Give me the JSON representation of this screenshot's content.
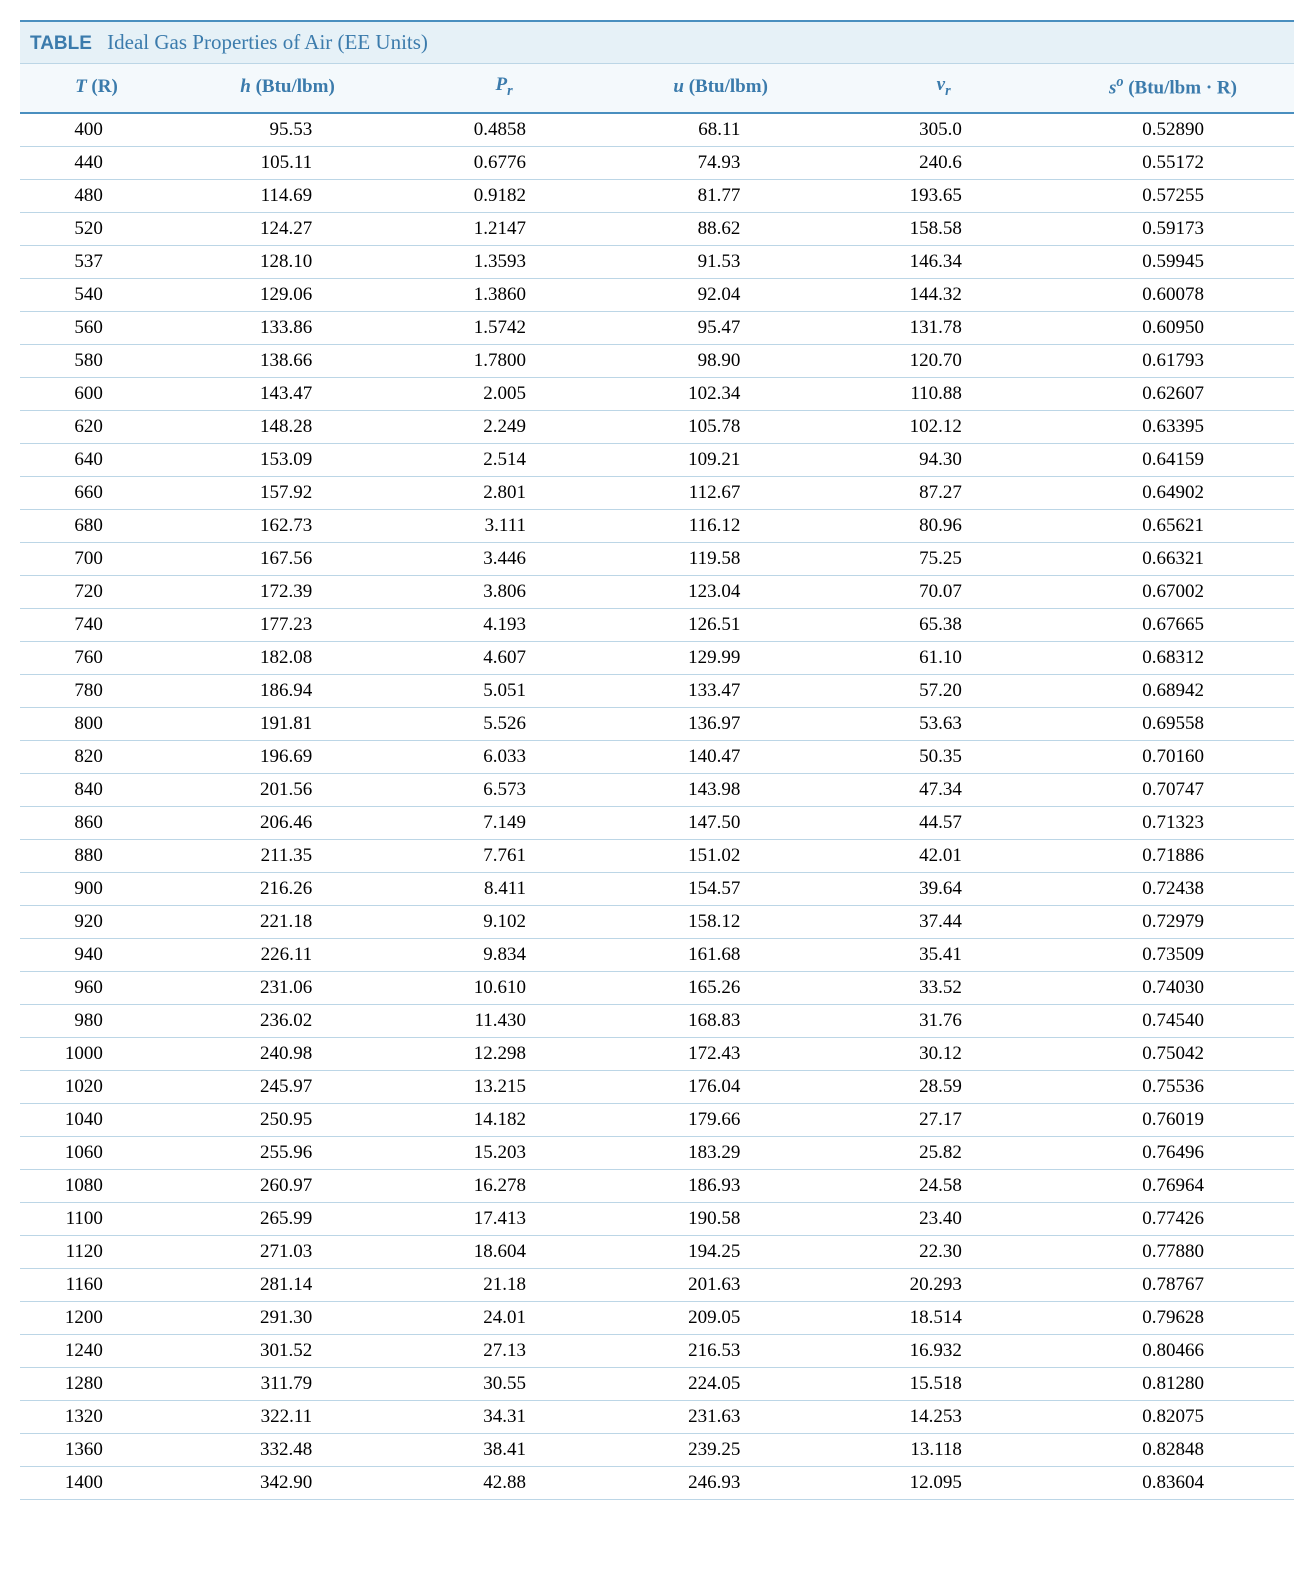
{
  "table": {
    "label": "TABLE",
    "title": "Ideal Gas Properties of Air (EE Units)",
    "colors": {
      "border_top": "#4a8fbf",
      "header_bg": "#f4f9fc",
      "title_bg": "#e6f1f7",
      "header_text": "#3b7bac",
      "row_border": "#bcd6e6",
      "body_text": "#000000",
      "page_bg": "#ffffff"
    },
    "columns": [
      {
        "key": "T",
        "header_html": "<span>T</span> <span class=\"roman\">(R)</span>"
      },
      {
        "key": "h",
        "header_html": "<span>h</span> <span class=\"roman\">(Btu/lbm)</span>"
      },
      {
        "key": "Pr",
        "header_html": "<span>P</span><sub>r</sub>"
      },
      {
        "key": "u",
        "header_html": "<span>u</span> <span class=\"roman\">(Btu/lbm)</span>"
      },
      {
        "key": "vr",
        "header_html": "<span>v</span><sub>r</sub>"
      },
      {
        "key": "s",
        "header_html": "<span>s</span><sup>o</sup> <span class=\"roman\">(Btu/lbm · R)</span>"
      }
    ],
    "rows": [
      [
        "400",
        "95.53",
        "0.4858",
        "68.11",
        "305.0",
        "0.52890"
      ],
      [
        "440",
        "105.11",
        "0.6776",
        "74.93",
        "240.6",
        "0.55172"
      ],
      [
        "480",
        "114.69",
        "0.9182",
        "81.77",
        "193.65",
        "0.57255"
      ],
      [
        "520",
        "124.27",
        "1.2147",
        "88.62",
        "158.58",
        "0.59173"
      ],
      [
        "537",
        "128.10",
        "1.3593",
        "91.53",
        "146.34",
        "0.59945"
      ],
      [
        "540",
        "129.06",
        "1.3860",
        "92.04",
        "144.32",
        "0.60078"
      ],
      [
        "560",
        "133.86",
        "1.5742",
        "95.47",
        "131.78",
        "0.60950"
      ],
      [
        "580",
        "138.66",
        "1.7800",
        "98.90",
        "120.70",
        "0.61793"
      ],
      [
        "600",
        "143.47",
        "2.005",
        "102.34",
        "110.88",
        "0.62607"
      ],
      [
        "620",
        "148.28",
        "2.249",
        "105.78",
        "102.12",
        "0.63395"
      ],
      [
        "640",
        "153.09",
        "2.514",
        "109.21",
        "94.30",
        "0.64159"
      ],
      [
        "660",
        "157.92",
        "2.801",
        "112.67",
        "87.27",
        "0.64902"
      ],
      [
        "680",
        "162.73",
        "3.111",
        "116.12",
        "80.96",
        "0.65621"
      ],
      [
        "700",
        "167.56",
        "3.446",
        "119.58",
        "75.25",
        "0.66321"
      ],
      [
        "720",
        "172.39",
        "3.806",
        "123.04",
        "70.07",
        "0.67002"
      ],
      [
        "740",
        "177.23",
        "4.193",
        "126.51",
        "65.38",
        "0.67665"
      ],
      [
        "760",
        "182.08",
        "4.607",
        "129.99",
        "61.10",
        "0.68312"
      ],
      [
        "780",
        "186.94",
        "5.051",
        "133.47",
        "57.20",
        "0.68942"
      ],
      [
        "800",
        "191.81",
        "5.526",
        "136.97",
        "53.63",
        "0.69558"
      ],
      [
        "820",
        "196.69",
        "6.033",
        "140.47",
        "50.35",
        "0.70160"
      ],
      [
        "840",
        "201.56",
        "6.573",
        "143.98",
        "47.34",
        "0.70747"
      ],
      [
        "860",
        "206.46",
        "7.149",
        "147.50",
        "44.57",
        "0.71323"
      ],
      [
        "880",
        "211.35",
        "7.761",
        "151.02",
        "42.01",
        "0.71886"
      ],
      [
        "900",
        "216.26",
        "8.411",
        "154.57",
        "39.64",
        "0.72438"
      ],
      [
        "920",
        "221.18",
        "9.102",
        "158.12",
        "37.44",
        "0.72979"
      ],
      [
        "940",
        "226.11",
        "9.834",
        "161.68",
        "35.41",
        "0.73509"
      ],
      [
        "960",
        "231.06",
        "10.610",
        "165.26",
        "33.52",
        "0.74030"
      ],
      [
        "980",
        "236.02",
        "11.430",
        "168.83",
        "31.76",
        "0.74540"
      ],
      [
        "1000",
        "240.98",
        "12.298",
        "172.43",
        "30.12",
        "0.75042"
      ],
      [
        "1020",
        "245.97",
        "13.215",
        "176.04",
        "28.59",
        "0.75536"
      ],
      [
        "1040",
        "250.95",
        "14.182",
        "179.66",
        "27.17",
        "0.76019"
      ],
      [
        "1060",
        "255.96",
        "15.203",
        "183.29",
        "25.82",
        "0.76496"
      ],
      [
        "1080",
        "260.97",
        "16.278",
        "186.93",
        "24.58",
        "0.76964"
      ],
      [
        "1100",
        "265.99",
        "17.413",
        "190.58",
        "23.40",
        "0.77426"
      ],
      [
        "1120",
        "271.03",
        "18.604",
        "194.25",
        "22.30",
        "0.77880"
      ],
      [
        "1160",
        "281.14",
        "21.18",
        "201.63",
        "20.293",
        "0.78767"
      ],
      [
        "1200",
        "291.30",
        "24.01",
        "209.05",
        "18.514",
        "0.79628"
      ],
      [
        "1240",
        "301.52",
        "27.13",
        "216.53",
        "16.932",
        "0.80466"
      ],
      [
        "1280",
        "311.79",
        "30.55",
        "224.05",
        "15.518",
        "0.81280"
      ],
      [
        "1320",
        "322.11",
        "34.31",
        "231.63",
        "14.253",
        "0.82075"
      ],
      [
        "1360",
        "332.48",
        "38.41",
        "239.25",
        "13.118",
        "0.82848"
      ],
      [
        "1400",
        "342.90",
        "42.88",
        "246.93",
        "12.095",
        "0.83604"
      ]
    ]
  }
}
